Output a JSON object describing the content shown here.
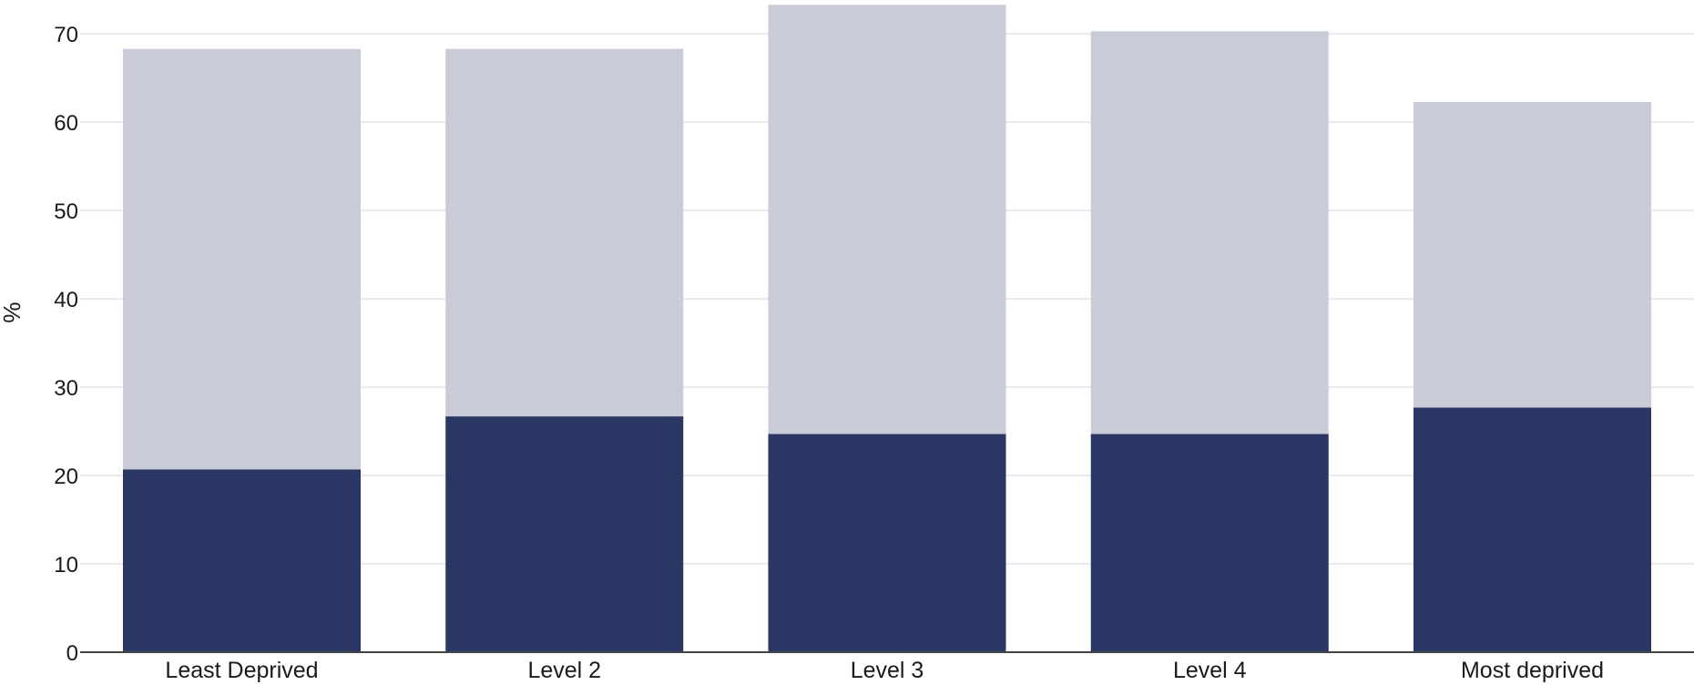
{
  "chart_data": {
    "type": "bar",
    "stacked": true,
    "categories": [
      "Least Deprived",
      "Level 2",
      "Level 3",
      "Level 4",
      "Most deprived"
    ],
    "series": [
      {
        "values": [
          20.7,
          26.7,
          24.7,
          24.7,
          27.7
        ],
        "color": "#2a3664"
      },
      {
        "values": [
          47.6,
          41.6,
          48.6,
          45.6,
          34.6
        ],
        "color": "#c9ccd8"
      }
    ],
    "ylabel": "%",
    "ylim": [
      0,
      73
    ],
    "yticks": [
      0,
      10,
      20,
      30,
      40,
      50,
      60,
      70
    ],
    "grid": true
  }
}
